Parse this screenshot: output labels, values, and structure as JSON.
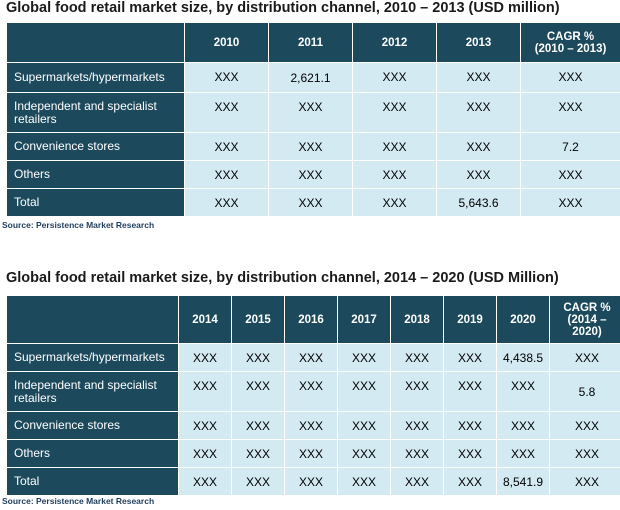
{
  "table1": {
    "title": "Global food retail market size, by distribution  channel, 2010 – 2013 (USD million)",
    "headers": [
      "2010",
      "2011",
      "2012",
      "2013",
      "CAGR %\n(2010 – 2013)"
    ],
    "rows": [
      {
        "label": "Supermarkets/hypermarkets",
        "values": [
          "XXX",
          "2,621.1",
          "XXX",
          "XXX",
          "XXX"
        ]
      },
      {
        "label": "Independent and specialist retailers",
        "values": [
          "XXX",
          "XXX",
          "XXX",
          "XXX",
          "XXX"
        ]
      },
      {
        "label": "Convenience stores",
        "values": [
          "XXX",
          "XXX",
          "XXX",
          "XXX",
          "7.2"
        ]
      },
      {
        "label": "Others",
        "values": [
          "XXX",
          "XXX",
          "XXX",
          "XXX",
          "XXX"
        ]
      },
      {
        "label": "Total",
        "values": [
          "XXX",
          "XXX",
          "XXX",
          "5,643.6",
          "XXX"
        ]
      }
    ],
    "source": "Source: Persistence Market Research"
  },
  "table2": {
    "title": "Global food retail  market size, by distribution  channel, 2014 – 2020 (USD Million)",
    "headers": [
      "2014",
      "2015",
      "2016",
      "2017",
      "2018",
      "2019",
      "2020",
      "CAGR %\n(2014 –\n2020)"
    ],
    "rows": [
      {
        "label": "Supermarkets/hypermarkets",
        "values": [
          "XXX",
          "XXX",
          "XXX",
          "XXX",
          "XXX",
          "XXX",
          "4,438.5",
          "XXX"
        ]
      },
      {
        "label": "Independent and specialist retailers",
        "values": [
          "XXX",
          "XXX",
          "XXX",
          "XXX",
          "XXX",
          "XXX",
          "XXX",
          "5.8"
        ]
      },
      {
        "label": "Convenience stores",
        "values": [
          "XXX",
          "XXX",
          "XXX",
          "XXX",
          "XXX",
          "XXX",
          "XXX",
          "XXX"
        ]
      },
      {
        "label": "Others",
        "values": [
          "XXX",
          "XXX",
          "XXX",
          "XXX",
          "XXX",
          "XXX",
          "XXX",
          "XXX"
        ]
      },
      {
        "label": "Total",
        "values": [
          "XXX",
          "XXX",
          "XXX",
          "XXX",
          "XXX",
          "XXX",
          "8,541.9",
          "XXX"
        ]
      }
    ],
    "source": "Source: Persistence Market Research"
  }
}
